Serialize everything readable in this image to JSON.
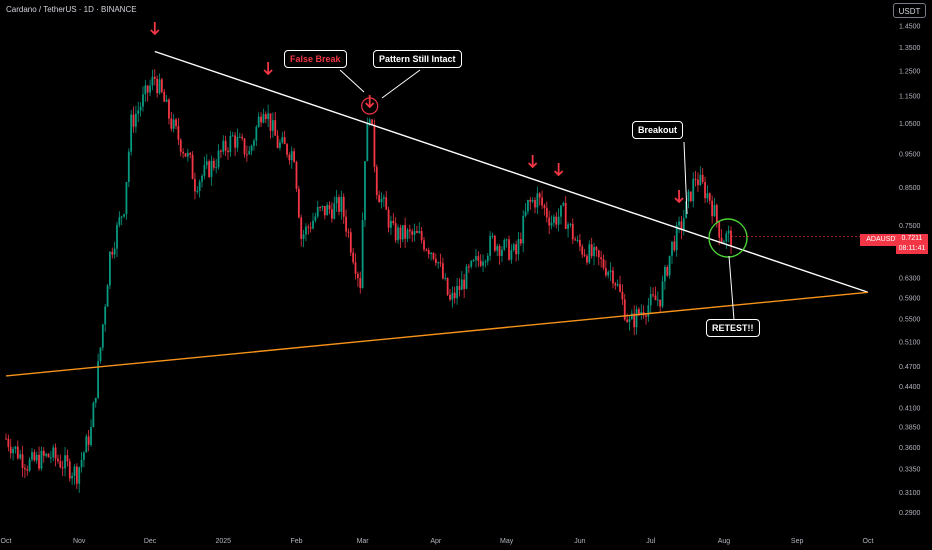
{
  "header": {
    "title": "Cardano / TetherUS · 1D · BINANCE",
    "unit": "USDT"
  },
  "price_label": {
    "symbol": "ADAUSDT",
    "price": "0.7211",
    "countdown": "08:11:41"
  },
  "callouts": {
    "false_break": "False Break",
    "pattern_intact": "Pattern Still Intact",
    "breakout": "Breakout",
    "retest": "RETEST!!"
  },
  "colors": {
    "up": "#089981",
    "down": "#f23645",
    "resistance": "#ffffff",
    "support": "#f7931a",
    "retest_circle": "#4cd137",
    "background": "#000000"
  },
  "chart_data": {
    "type": "candlestick",
    "log_scale": true,
    "grid": false,
    "y_ticks": [
      "1.4500",
      "1.3500",
      "1.2500",
      "1.1500",
      "1.0500",
      "0.9500",
      "0.8500",
      "0.7500",
      "0.6300",
      "0.5900",
      "0.5500",
      "0.5100",
      "0.4700",
      "0.4400",
      "0.4100",
      "0.3850",
      "0.3600",
      "0.3350",
      "0.3100",
      "0.2900"
    ],
    "x_ticks": [
      "Oct",
      "Nov",
      "Dec",
      "2025",
      "Feb",
      "Mar",
      "Apr",
      "May",
      "Jun",
      "Jul",
      "Aug",
      "Sep",
      "Oct"
    ],
    "x_range": [
      "2024-10-01",
      "2025-10-01"
    ],
    "y_range": [
      0.28,
      1.5
    ],
    "close_path": [
      [
        "2024-10-01",
        0.37
      ],
      [
        "2024-10-10",
        0.34
      ],
      [
        "2024-10-20",
        0.35
      ],
      [
        "2024-10-31",
        0.33
      ],
      [
        "2024-11-06",
        0.38
      ],
      [
        "2024-11-10",
        0.5
      ],
      [
        "2024-11-14",
        0.68
      ],
      [
        "2024-11-20",
        0.8
      ],
      [
        "2024-11-23",
        1.05
      ],
      [
        "2024-12-03",
        1.22
      ],
      [
        "2024-12-06",
        1.15
      ],
      [
        "2024-12-10",
        1.05
      ],
      [
        "2024-12-18",
        0.92
      ],
      [
        "2024-12-20",
        0.86
      ],
      [
        "2024-12-28",
        0.92
      ],
      [
        "2025-01-05",
        1.0
      ],
      [
        "2025-01-12",
        0.95
      ],
      [
        "2025-01-18",
        1.12
      ],
      [
        "2025-01-24",
        0.98
      ],
      [
        "2025-01-31",
        0.95
      ],
      [
        "2025-02-03",
        0.72
      ],
      [
        "2025-02-10",
        0.78
      ],
      [
        "2025-02-20",
        0.8
      ],
      [
        "2025-02-28",
        0.62
      ],
      [
        "2025-03-02",
        0.95
      ],
      [
        "2025-03-04",
        1.1
      ],
      [
        "2025-03-07",
        0.85
      ],
      [
        "2025-03-14",
        0.73
      ],
      [
        "2025-03-25",
        0.72
      ],
      [
        "2025-04-01",
        0.68
      ],
      [
        "2025-04-07",
        0.58
      ],
      [
        "2025-04-15",
        0.64
      ],
      [
        "2025-04-25",
        0.71
      ],
      [
        "2025-05-05",
        0.68
      ],
      [
        "2025-05-10",
        0.8
      ],
      [
        "2025-05-14",
        0.82
      ],
      [
        "2025-05-20",
        0.76
      ],
      [
        "2025-05-25",
        0.78
      ],
      [
        "2025-05-31",
        0.7
      ],
      [
        "2025-06-08",
        0.67
      ],
      [
        "2025-06-15",
        0.64
      ],
      [
        "2025-06-22",
        0.54
      ],
      [
        "2025-06-28",
        0.57
      ],
      [
        "2025-07-05",
        0.59
      ],
      [
        "2025-07-10",
        0.7
      ],
      [
        "2025-07-14",
        0.75
      ],
      [
        "2025-07-20",
        0.88
      ],
      [
        "2025-07-26",
        0.82
      ],
      [
        "2025-07-31",
        0.72
      ],
      [
        "2025-08-04",
        0.72
      ]
    ],
    "lines": [
      {
        "name": "resistance",
        "from": [
          "2024-12-03",
          1.33
        ],
        "to": [
          "2025-10-01",
          0.6
        ]
      },
      {
        "name": "support",
        "from": [
          "2024-10-01",
          0.455
        ],
        "to": [
          "2025-10-01",
          0.6
        ]
      }
    ],
    "annotations": [
      {
        "text": "False Break",
        "date": "2025-03-01"
      },
      {
        "text": "Pattern Still Intact",
        "date": "2025-03-08"
      },
      {
        "text": "Breakout",
        "date": "2025-07-18"
      },
      {
        "text": "RETEST!!",
        "date": "2025-08-01"
      }
    ],
    "markers": [
      {
        "type": "arrow-down",
        "date": "2024-12-03"
      },
      {
        "type": "arrow-down",
        "date": "2025-01-20"
      },
      {
        "type": "arrow-down",
        "date": "2025-03-04"
      },
      {
        "type": "arrow-down",
        "date": "2025-05-12"
      },
      {
        "type": "arrow-down",
        "date": "2025-05-23"
      },
      {
        "type": "arrow-down",
        "date": "2025-07-13"
      }
    ]
  }
}
